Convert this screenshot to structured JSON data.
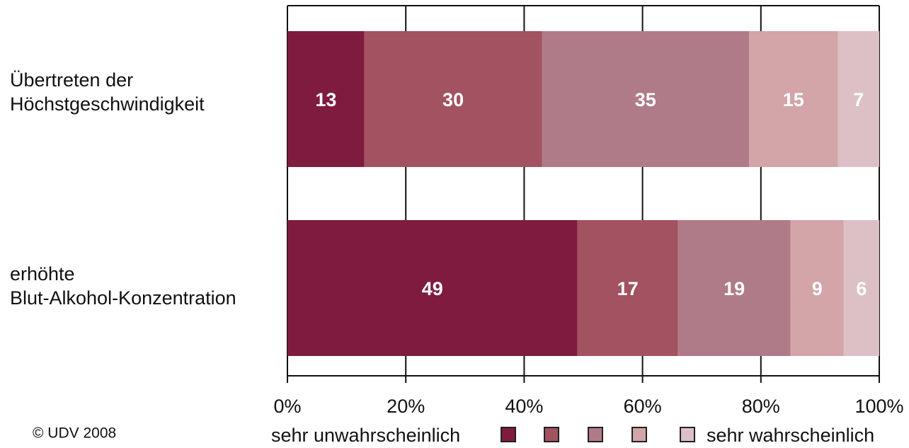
{
  "chart_data": {
    "type": "bar",
    "orientation": "horizontal",
    "stacked": true,
    "categories": [
      [
        "Übertreten der",
        "Höchstgeschwindigkeit"
      ],
      [
        "erhöhte",
        "Blut-Alkohol-Konzentration"
      ]
    ],
    "series": [
      {
        "values": [
          13,
          49
        ],
        "color": "#7f1b3e"
      },
      {
        "values": [
          30,
          17
        ],
        "color": "#a25260"
      },
      {
        "values": [
          35,
          19
        ],
        "color": "#b07b88"
      },
      {
        "values": [
          15,
          9
        ],
        "color": "#d3a4a8"
      },
      {
        "values": [
          7,
          6
        ],
        "color": "#dcc0c6"
      }
    ],
    "xlim": [
      0,
      100
    ],
    "x_ticks": [
      "0%",
      "20%",
      "40%",
      "60%",
      "80%",
      "100%"
    ],
    "grid": true,
    "legend": {
      "placement": "bottom",
      "start_label": "sehr unwahrscheinlich",
      "end_label": "sehr wahrscheinlich"
    }
  },
  "footer": {
    "copyright": "© UDV 2008"
  }
}
